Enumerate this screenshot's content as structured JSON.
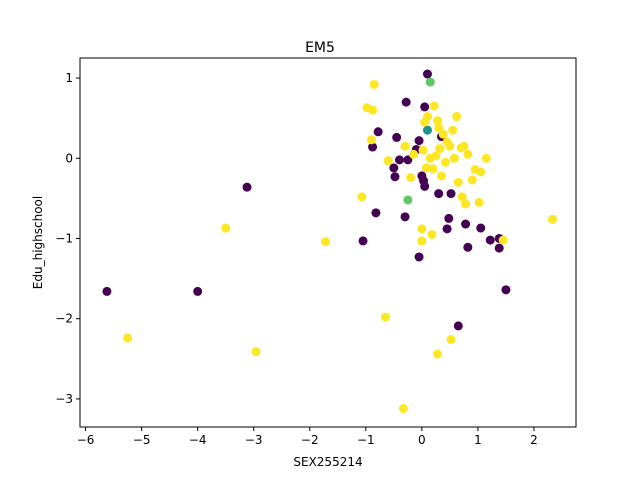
{
  "chart_data": {
    "type": "scatter",
    "title": "EM5",
    "xlabel": "SEX255214",
    "ylabel": "Edu_highschool",
    "xlim": [
      -6.1,
      2.75
    ],
    "ylim": [
      -3.35,
      1.25
    ],
    "xticks": [
      -6,
      -5,
      -4,
      -3,
      -2,
      -1,
      0,
      1,
      2
    ],
    "yticks": [
      -3,
      -2,
      -1,
      0,
      1
    ],
    "xtick_labels": [
      "−6",
      "−5",
      "−4",
      "−3",
      "−2",
      "−1",
      "0",
      "1",
      "2"
    ],
    "ytick_labels": [
      "−3",
      "−2",
      "−1",
      "0",
      "1"
    ],
    "grid": false,
    "legend": "none",
    "colors": {
      "purple": "#440154",
      "teal": "#21918c",
      "green": "#5ec962",
      "yellow": "#fde725"
    },
    "points": [
      {
        "x": -5.62,
        "y": -1.66,
        "c": "purple"
      },
      {
        "x": -4.0,
        "y": -1.66,
        "c": "purple"
      },
      {
        "x": -3.12,
        "y": -0.36,
        "c": "purple"
      },
      {
        "x": -1.05,
        "y": -1.03,
        "c": "purple"
      },
      {
        "x": -0.82,
        "y": -0.68,
        "c": "purple"
      },
      {
        "x": -0.88,
        "y": 0.14,
        "c": "purple"
      },
      {
        "x": -0.78,
        "y": 0.33,
        "c": "purple"
      },
      {
        "x": -0.5,
        "y": -0.12,
        "c": "purple"
      },
      {
        "x": -0.48,
        "y": -0.23,
        "c": "purple"
      },
      {
        "x": -0.45,
        "y": 0.26,
        "c": "purple"
      },
      {
        "x": -0.4,
        "y": -0.02,
        "c": "purple"
      },
      {
        "x": -0.3,
        "y": -0.73,
        "c": "purple"
      },
      {
        "x": -0.28,
        "y": 0.7,
        "c": "purple"
      },
      {
        "x": -0.25,
        "y": -0.02,
        "c": "purple"
      },
      {
        "x": -0.1,
        "y": 0.11,
        "c": "purple"
      },
      {
        "x": -0.05,
        "y": -1.23,
        "c": "purple"
      },
      {
        "x": -0.05,
        "y": 0.22,
        "c": "purple"
      },
      {
        "x": 0.0,
        "y": -0.22,
        "c": "purple"
      },
      {
        "x": 0.03,
        "y": -0.28,
        "c": "purple"
      },
      {
        "x": 0.05,
        "y": -0.35,
        "c": "purple"
      },
      {
        "x": 0.05,
        "y": 0.64,
        "c": "purple"
      },
      {
        "x": 0.1,
        "y": 1.05,
        "c": "purple"
      },
      {
        "x": 0.3,
        "y": -0.44,
        "c": "purple"
      },
      {
        "x": 0.35,
        "y": 0.27,
        "c": "purple"
      },
      {
        "x": 0.45,
        "y": -0.88,
        "c": "purple"
      },
      {
        "x": 0.48,
        "y": -0.75,
        "c": "purple"
      },
      {
        "x": 0.52,
        "y": -0.44,
        "c": "purple"
      },
      {
        "x": 0.65,
        "y": -2.09,
        "c": "purple"
      },
      {
        "x": 0.78,
        "y": -0.82,
        "c": "purple"
      },
      {
        "x": 0.82,
        "y": -1.11,
        "c": "purple"
      },
      {
        "x": 1.05,
        "y": -0.87,
        "c": "purple"
      },
      {
        "x": 1.22,
        "y": -1.02,
        "c": "purple"
      },
      {
        "x": 1.38,
        "y": -1.12,
        "c": "purple"
      },
      {
        "x": 1.38,
        "y": -1.0,
        "c": "purple"
      },
      {
        "x": 1.5,
        "y": -1.64,
        "c": "purple"
      },
      {
        "x": 0.1,
        "y": 0.35,
        "c": "teal"
      },
      {
        "x": 0.15,
        "y": 0.95,
        "c": "green"
      },
      {
        "x": -0.25,
        "y": -0.52,
        "c": "green"
      },
      {
        "x": -5.25,
        "y": -2.24,
        "c": "yellow"
      },
      {
        "x": -3.5,
        "y": -0.87,
        "c": "yellow"
      },
      {
        "x": -2.96,
        "y": -2.41,
        "c": "yellow"
      },
      {
        "x": -1.72,
        "y": -1.04,
        "c": "yellow"
      },
      {
        "x": -1.07,
        "y": -0.48,
        "c": "yellow"
      },
      {
        "x": -0.98,
        "y": 0.63,
        "c": "yellow"
      },
      {
        "x": -0.88,
        "y": 0.6,
        "c": "yellow"
      },
      {
        "x": -0.85,
        "y": 0.92,
        "c": "yellow"
      },
      {
        "x": -0.9,
        "y": 0.23,
        "c": "yellow"
      },
      {
        "x": -0.65,
        "y": -1.98,
        "c": "yellow"
      },
      {
        "x": -0.6,
        "y": -0.03,
        "c": "yellow"
      },
      {
        "x": -0.33,
        "y": -3.12,
        "c": "yellow"
      },
      {
        "x": -0.3,
        "y": 0.15,
        "c": "yellow"
      },
      {
        "x": -0.2,
        "y": -0.24,
        "c": "yellow"
      },
      {
        "x": -0.15,
        "y": 0.05,
        "c": "yellow"
      },
      {
        "x": 0.0,
        "y": -1.03,
        "c": "yellow"
      },
      {
        "x": 0.0,
        "y": -0.88,
        "c": "yellow"
      },
      {
        "x": 0.02,
        "y": 0.1,
        "c": "yellow"
      },
      {
        "x": 0.05,
        "y": 0.45,
        "c": "yellow"
      },
      {
        "x": 0.08,
        "y": -0.12,
        "c": "yellow"
      },
      {
        "x": 0.1,
        "y": 0.52,
        "c": "yellow"
      },
      {
        "x": 0.15,
        "y": 0.0,
        "c": "yellow"
      },
      {
        "x": 0.18,
        "y": -0.95,
        "c": "yellow"
      },
      {
        "x": 0.2,
        "y": -0.13,
        "c": "yellow"
      },
      {
        "x": 0.22,
        "y": 0.65,
        "c": "yellow"
      },
      {
        "x": 0.25,
        "y": 0.03,
        "c": "yellow"
      },
      {
        "x": 0.28,
        "y": 0.47,
        "c": "yellow"
      },
      {
        "x": 0.28,
        "y": -2.44,
        "c": "yellow"
      },
      {
        "x": 0.3,
        "y": 0.38,
        "c": "yellow"
      },
      {
        "x": 0.32,
        "y": 0.12,
        "c": "yellow"
      },
      {
        "x": 0.35,
        "y": -0.22,
        "c": "yellow"
      },
      {
        "x": 0.38,
        "y": 0.3,
        "c": "yellow"
      },
      {
        "x": 0.42,
        "y": -0.05,
        "c": "yellow"
      },
      {
        "x": 0.45,
        "y": 0.2,
        "c": "yellow"
      },
      {
        "x": 0.5,
        "y": 0.15,
        "c": "yellow"
      },
      {
        "x": 0.52,
        "y": -2.26,
        "c": "yellow"
      },
      {
        "x": 0.55,
        "y": 0.35,
        "c": "yellow"
      },
      {
        "x": 0.58,
        "y": 0.0,
        "c": "yellow"
      },
      {
        "x": 0.62,
        "y": 0.52,
        "c": "yellow"
      },
      {
        "x": 0.65,
        "y": -0.3,
        "c": "yellow"
      },
      {
        "x": 0.7,
        "y": 0.13,
        "c": "yellow"
      },
      {
        "x": 0.72,
        "y": -0.48,
        "c": "yellow"
      },
      {
        "x": 0.75,
        "y": 0.15,
        "c": "yellow"
      },
      {
        "x": 0.78,
        "y": -0.57,
        "c": "yellow"
      },
      {
        "x": 0.82,
        "y": 0.05,
        "c": "yellow"
      },
      {
        "x": 0.9,
        "y": -0.27,
        "c": "yellow"
      },
      {
        "x": 0.95,
        "y": -0.14,
        "c": "yellow"
      },
      {
        "x": 1.02,
        "y": -0.55,
        "c": "yellow"
      },
      {
        "x": 1.05,
        "y": -0.17,
        "c": "yellow"
      },
      {
        "x": 1.15,
        "y": 0.0,
        "c": "yellow"
      },
      {
        "x": 1.45,
        "y": -1.02,
        "c": "yellow"
      },
      {
        "x": 2.33,
        "y": -0.76,
        "c": "yellow"
      }
    ]
  }
}
